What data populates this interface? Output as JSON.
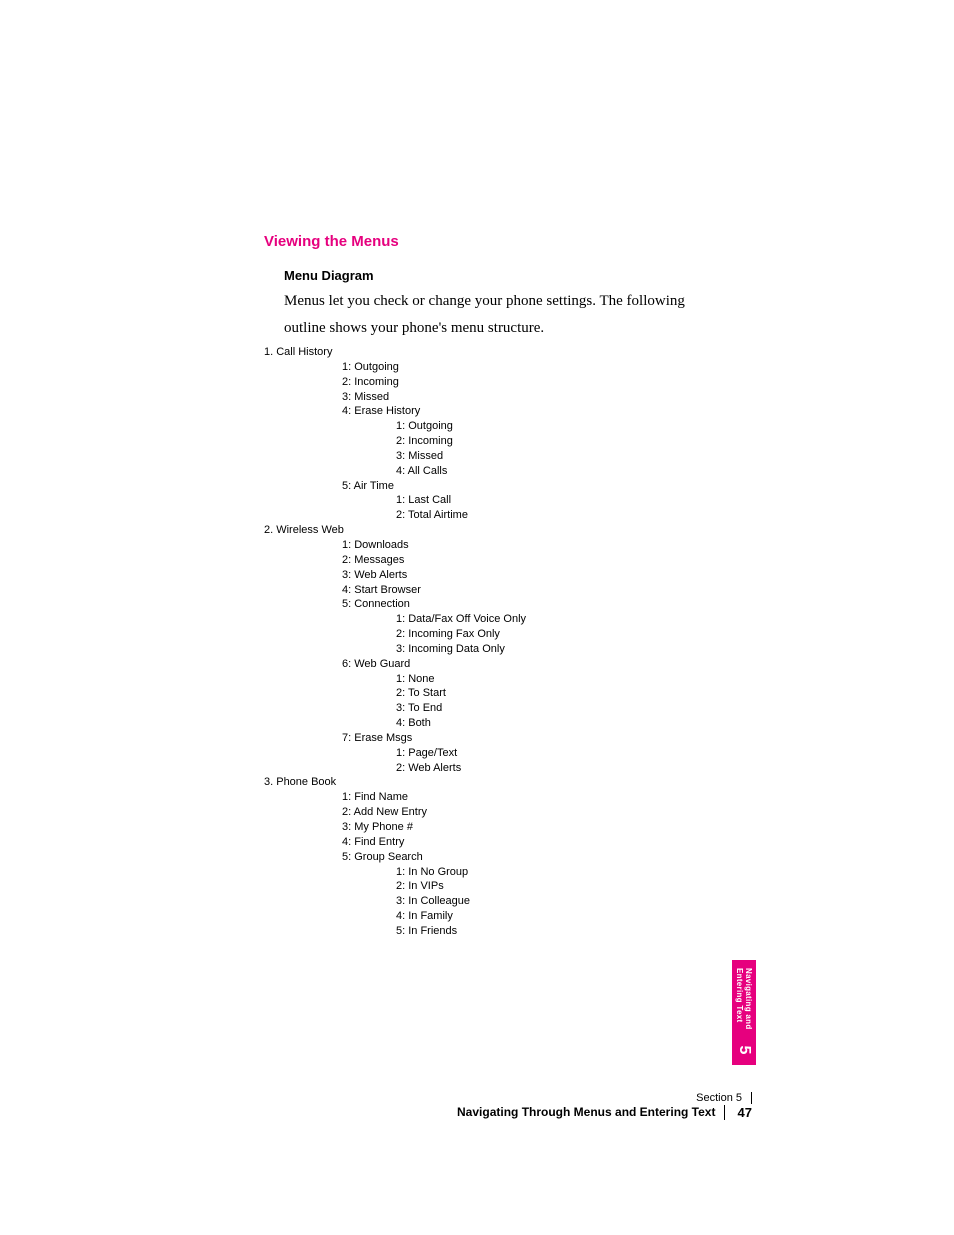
{
  "colors": {
    "accent": "#e6007e",
    "text": "#000000",
    "background": "#ffffff",
    "tab_bg": "#e6007e",
    "tab_text": "#ffffff"
  },
  "typography": {
    "heading_fontsize": 15,
    "subheading_fontsize": 13,
    "body_fontsize": 15,
    "menu_fontsize": 11,
    "footer_fontsize": 11
  },
  "heading": "Viewing the Menus",
  "subheading": "Menu Diagram",
  "intro_line1": "Menus let you check or change your phone settings. The following",
  "intro_line2": "outline shows your phone's menu structure.",
  "menu": {
    "s1": {
      "title": "1. Call History",
      "i1": "1: Outgoing",
      "i2": "2: Incoming",
      "i3": "3: Missed",
      "i4": {
        "title": "4: Erase History",
        "s1": "1: Outgoing",
        "s2": "2: Incoming",
        "s3": "3: Missed",
        "s4": "4: All Calls"
      },
      "i5": {
        "title": "5: Air Time",
        "s1": "1: Last Call",
        "s2": "2: Total Airtime"
      }
    },
    "s2": {
      "title": "2. Wireless Web",
      "i1": "1: Downloads",
      "i2": "2: Messages",
      "i3": "3: Web Alerts",
      "i4": "4: Start Browser",
      "i5": {
        "title": "5: Connection",
        "s1": "1: Data/Fax Off Voice Only",
        "s2": "2: Incoming Fax Only",
        "s3": "3: Incoming Data Only"
      },
      "i6": {
        "title": "6: Web Guard",
        "s1": "1: None",
        "s2": "2: To Start",
        "s3": "3: To End",
        "s4": "4: Both"
      },
      "i7": {
        "title": "7: Erase Msgs",
        "s1": "1: Page/Text",
        "s2": "2: Web Alerts"
      }
    },
    "s3": {
      "title": "3. Phone Book",
      "i1": "1: Find Name",
      "i2": "2: Add New Entry",
      "i3": "3: My Phone #",
      "i4": "4: Find Entry",
      "i5": {
        "title": "5: Group Search",
        "s1": "1: In No Group",
        "s2": "2: In VIPs",
        "s3": "3: In Colleague",
        "s4": "4: In Family",
        "s5": "5: In Friends"
      }
    }
  },
  "side_tab": {
    "line1": "Navigating and",
    "line2": "Entering Text",
    "number": "5"
  },
  "footer": {
    "section_label": "Section 5",
    "title": "Navigating Through Menus and Entering Text",
    "page": "47"
  }
}
